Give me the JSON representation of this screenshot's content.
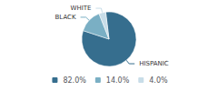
{
  "chart_data": {
    "type": "pie",
    "categories": [
      "HISPANIC",
      "BLACK",
      "WHITE"
    ],
    "values": [
      82.0,
      14.0,
      4.0
    ],
    "value_labels": [
      "82.0%",
      "14.0%",
      "4.0%"
    ],
    "colors": [
      "#366e8e",
      "#7aafc4",
      "#c8dde8"
    ],
    "legend": "bottom"
  }
}
